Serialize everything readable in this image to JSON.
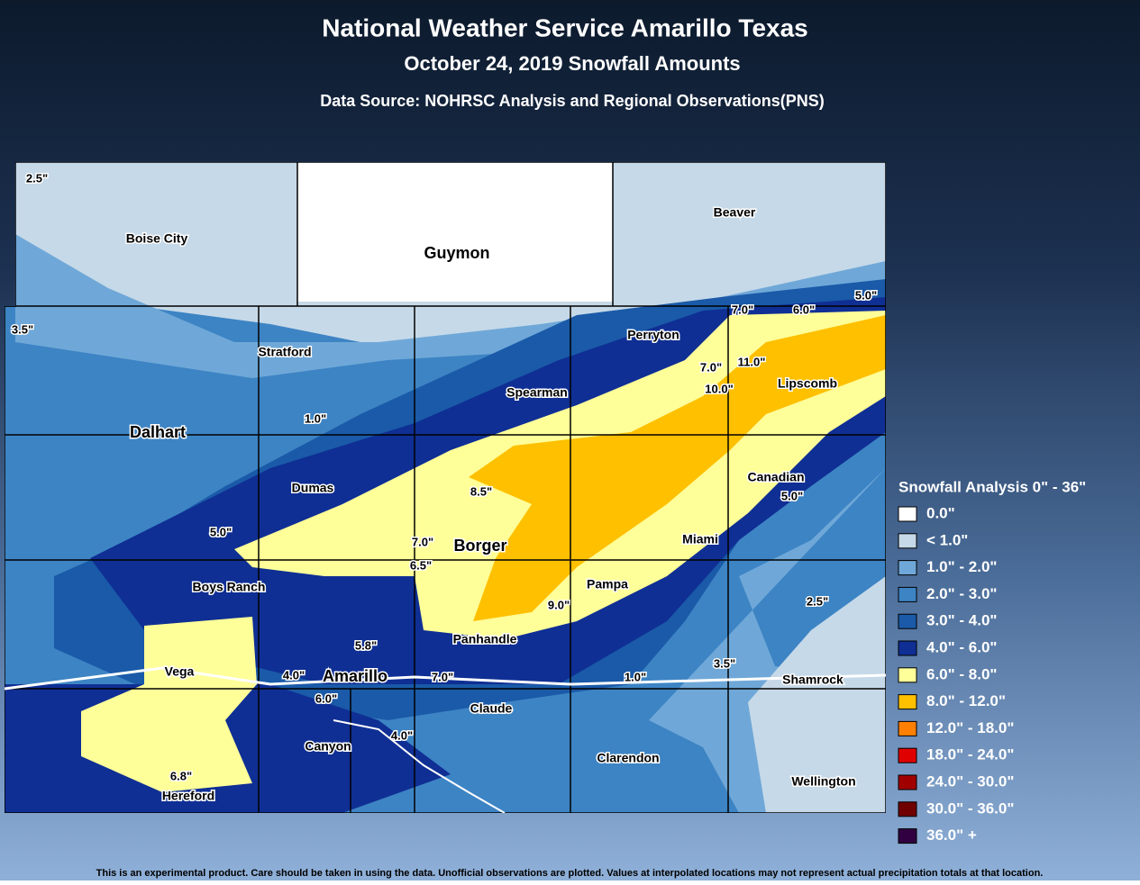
{
  "header": {
    "title": "National Weather Service Amarillo Texas",
    "subtitle": "October 24, 2019 Snowfall Amounts",
    "source": "Data Source: NOHRSC Analysis and Regional Observations(PNS)"
  },
  "cities": [
    "Boise City",
    "Guymon",
    "Beaver",
    "Perryton",
    "Stratford",
    "Spearman",
    "Lipscomb",
    "Dalhart",
    "Dumas",
    "Canadian",
    "Borger",
    "Miami",
    "Boys Ranch",
    "Pampa",
    "Panhandle",
    "Vega",
    "Amarillo",
    "Shamrock",
    "Claude",
    "Canyon",
    "Clarendon",
    "Wellington",
    "Hereford"
  ],
  "observations": [
    "2.5\"",
    "3.5\"",
    "5.0\"",
    "7.0\"",
    "6.0\"",
    "7.0\"",
    "11.0\"",
    "10.0\"",
    "1.0\"",
    "8.5\"",
    "5.0\"",
    "5.0\"",
    "7.0\"",
    "6.5\"",
    "2.5\"",
    "9.0\"",
    "5.8\"",
    "4.0\"",
    "7.0\"",
    "1.0\"",
    "3.5\"",
    "6.0\"",
    "4.0\"",
    "6.8\""
  ],
  "legend": {
    "title": "Snowfall Analysis 0\" - 36\"",
    "items": [
      {
        "label": "0.0\"",
        "color": "#ffffff"
      },
      {
        "label": "< 1.0\"",
        "color": "#c6d9e8"
      },
      {
        "label": "1.0\" - 2.0\"",
        "color": "#6fa8d8"
      },
      {
        "label": "2.0\" - 3.0\"",
        "color": "#3d84c4"
      },
      {
        "label": "3.0\" - 4.0\"",
        "color": "#1a5aa8"
      },
      {
        "label": "4.0\" - 6.0\"",
        "color": "#0f2f94"
      },
      {
        "label": "6.0\" - 8.0\"",
        "color": "#ffff99"
      },
      {
        "label": "8.0\" - 12.0\"",
        "color": "#ffc000"
      },
      {
        "label": "12.0\" - 18.0\"",
        "color": "#ff8000"
      },
      {
        "label": "18.0\" - 24.0\"",
        "color": "#e00000"
      },
      {
        "label": "24.0\" - 30.0\"",
        "color": "#a00000"
      },
      {
        "label": "30.0\" - 36.0\"",
        "color": "#700000"
      },
      {
        "label": "36.0\" +",
        "color": "#300040"
      }
    ]
  },
  "footer": "This is an experimental product. Care should be taken in using the data. Unofficial observations are plotted. Values at interpolated locations may not represent actual precipitation totals at that location."
}
